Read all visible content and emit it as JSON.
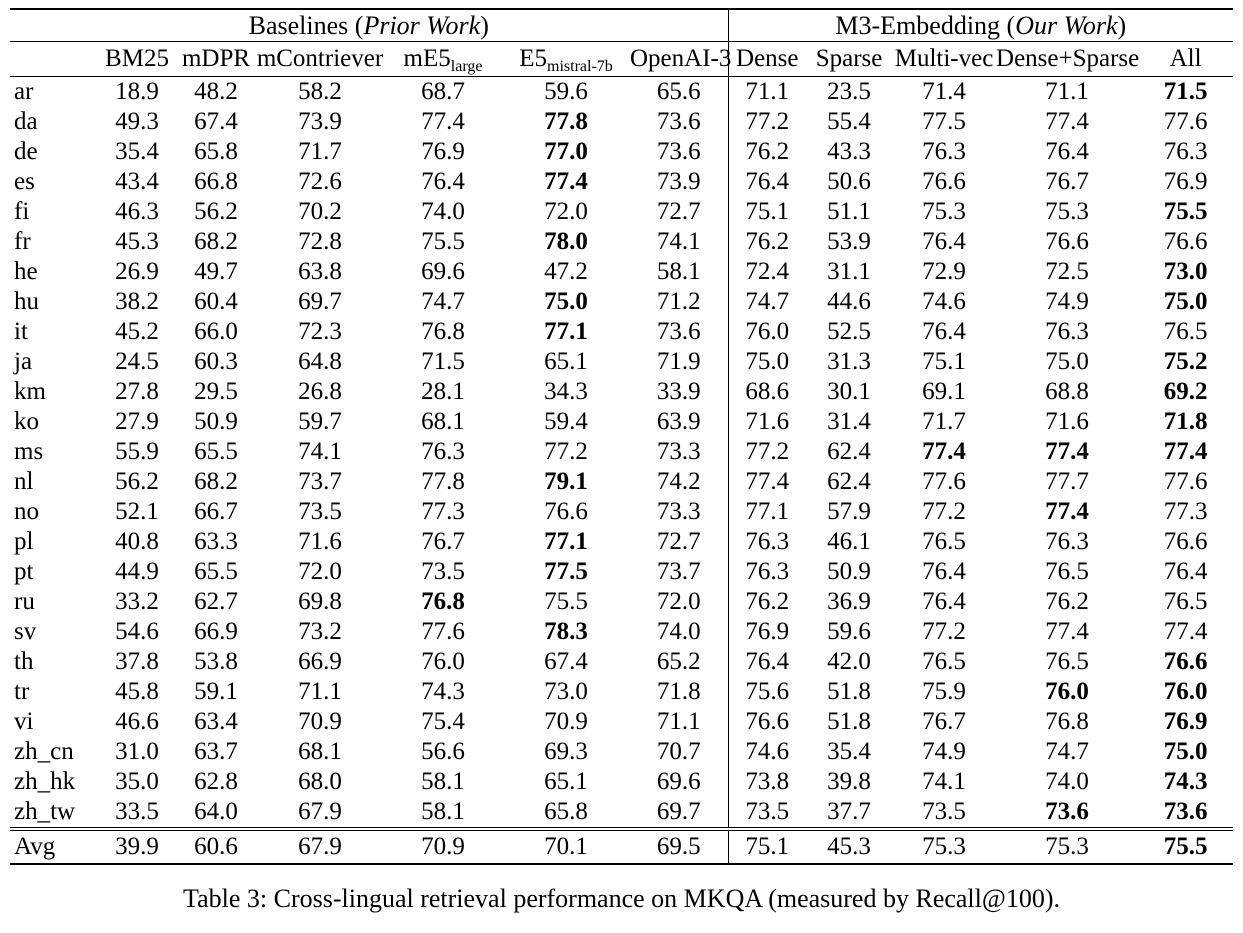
{
  "caption": "Table 3: Cross-lingual retrieval performance on MKQA (measured by Recall@100).",
  "colors": {
    "background": "#ffffff",
    "text": "#000000",
    "rule": "#000000"
  },
  "table": {
    "groups": [
      {
        "prefix": "Baselines (",
        "italic": "Prior Work",
        "suffix": ")"
      },
      {
        "prefix": "M3-Embedding (",
        "italic": "Our Work",
        "suffix": ")"
      }
    ],
    "row_label_header": "",
    "baseline_columns": [
      {
        "label": "BM25",
        "sub": ""
      },
      {
        "label": "mDPR",
        "sub": ""
      },
      {
        "label": "mContriever",
        "sub": ""
      },
      {
        "label": "mE5",
        "sub": "large"
      },
      {
        "label": "E5",
        "sub": "mistral-7b"
      },
      {
        "label": "OpenAI-3",
        "sub": ""
      }
    ],
    "m3_columns": [
      {
        "label": "Dense",
        "sub": ""
      },
      {
        "label": "Sparse",
        "sub": ""
      },
      {
        "label": "Multi-vec",
        "sub": ""
      },
      {
        "label": "Dense+Sparse",
        "sub": ""
      },
      {
        "label": "All",
        "sub": ""
      }
    ],
    "rows": [
      {
        "lang": "ar",
        "cells": [
          "18.9",
          "48.2",
          "58.2",
          "68.7",
          "59.6",
          "65.6",
          "71.1",
          "23.5",
          "71.4",
          "71.1",
          "71.5"
        ],
        "bold": [
          10
        ],
        "is_avg": false
      },
      {
        "lang": "da",
        "cells": [
          "49.3",
          "67.4",
          "73.9",
          "77.4",
          "77.8",
          "73.6",
          "77.2",
          "55.4",
          "77.5",
          "77.4",
          "77.6"
        ],
        "bold": [
          4
        ],
        "is_avg": false
      },
      {
        "lang": "de",
        "cells": [
          "35.4",
          "65.8",
          "71.7",
          "76.9",
          "77.0",
          "73.6",
          "76.2",
          "43.3",
          "76.3",
          "76.4",
          "76.3"
        ],
        "bold": [
          4
        ],
        "is_avg": false
      },
      {
        "lang": "es",
        "cells": [
          "43.4",
          "66.8",
          "72.6",
          "76.4",
          "77.4",
          "73.9",
          "76.4",
          "50.6",
          "76.6",
          "76.7",
          "76.9"
        ],
        "bold": [
          4
        ],
        "is_avg": false
      },
      {
        "lang": "fi",
        "cells": [
          "46.3",
          "56.2",
          "70.2",
          "74.0",
          "72.0",
          "72.7",
          "75.1",
          "51.1",
          "75.3",
          "75.3",
          "75.5"
        ],
        "bold": [
          10
        ],
        "is_avg": false
      },
      {
        "lang": "fr",
        "cells": [
          "45.3",
          "68.2",
          "72.8",
          "75.5",
          "78.0",
          "74.1",
          "76.2",
          "53.9",
          "76.4",
          "76.6",
          "76.6"
        ],
        "bold": [
          4
        ],
        "is_avg": false
      },
      {
        "lang": "he",
        "cells": [
          "26.9",
          "49.7",
          "63.8",
          "69.6",
          "47.2",
          "58.1",
          "72.4",
          "31.1",
          "72.9",
          "72.5",
          "73.0"
        ],
        "bold": [
          10
        ],
        "is_avg": false
      },
      {
        "lang": "hu",
        "cells": [
          "38.2",
          "60.4",
          "69.7",
          "74.7",
          "75.0",
          "71.2",
          "74.7",
          "44.6",
          "74.6",
          "74.9",
          "75.0"
        ],
        "bold": [
          4,
          10
        ],
        "is_avg": false
      },
      {
        "lang": "it",
        "cells": [
          "45.2",
          "66.0",
          "72.3",
          "76.8",
          "77.1",
          "73.6",
          "76.0",
          "52.5",
          "76.4",
          "76.3",
          "76.5"
        ],
        "bold": [
          4
        ],
        "is_avg": false
      },
      {
        "lang": "ja",
        "cells": [
          "24.5",
          "60.3",
          "64.8",
          "71.5",
          "65.1",
          "71.9",
          "75.0",
          "31.3",
          "75.1",
          "75.0",
          "75.2"
        ],
        "bold": [
          10
        ],
        "is_avg": false
      },
      {
        "lang": "km",
        "cells": [
          "27.8",
          "29.5",
          "26.8",
          "28.1",
          "34.3",
          "33.9",
          "68.6",
          "30.1",
          "69.1",
          "68.8",
          "69.2"
        ],
        "bold": [
          10
        ],
        "is_avg": false
      },
      {
        "lang": "ko",
        "cells": [
          "27.9",
          "50.9",
          "59.7",
          "68.1",
          "59.4",
          "63.9",
          "71.6",
          "31.4",
          "71.7",
          "71.6",
          "71.8"
        ],
        "bold": [
          10
        ],
        "is_avg": false
      },
      {
        "lang": "ms",
        "cells": [
          "55.9",
          "65.5",
          "74.1",
          "76.3",
          "77.2",
          "73.3",
          "77.2",
          "62.4",
          "77.4",
          "77.4",
          "77.4"
        ],
        "bold": [
          8,
          9,
          10
        ],
        "is_avg": false
      },
      {
        "lang": "nl",
        "cells": [
          "56.2",
          "68.2",
          "73.7",
          "77.8",
          "79.1",
          "74.2",
          "77.4",
          "62.4",
          "77.6",
          "77.7",
          "77.6"
        ],
        "bold": [
          4
        ],
        "is_avg": false
      },
      {
        "lang": "no",
        "cells": [
          "52.1",
          "66.7",
          "73.5",
          "77.3",
          "76.6",
          "73.3",
          "77.1",
          "57.9",
          "77.2",
          "77.4",
          "77.3"
        ],
        "bold": [
          9
        ],
        "is_avg": false
      },
      {
        "lang": "pl",
        "cells": [
          "40.8",
          "63.3",
          "71.6",
          "76.7",
          "77.1",
          "72.7",
          "76.3",
          "46.1",
          "76.5",
          "76.3",
          "76.6"
        ],
        "bold": [
          4
        ],
        "is_avg": false
      },
      {
        "lang": "pt",
        "cells": [
          "44.9",
          "65.5",
          "72.0",
          "73.5",
          "77.5",
          "73.7",
          "76.3",
          "50.9",
          "76.4",
          "76.5",
          "76.4"
        ],
        "bold": [
          4
        ],
        "is_avg": false
      },
      {
        "lang": "ru",
        "cells": [
          "33.2",
          "62.7",
          "69.8",
          "76.8",
          "75.5",
          "72.0",
          "76.2",
          "36.9",
          "76.4",
          "76.2",
          "76.5"
        ],
        "bold": [
          3
        ],
        "is_avg": false
      },
      {
        "lang": "sv",
        "cells": [
          "54.6",
          "66.9",
          "73.2",
          "77.6",
          "78.3",
          "74.0",
          "76.9",
          "59.6",
          "77.2",
          "77.4",
          "77.4"
        ],
        "bold": [
          4
        ],
        "is_avg": false
      },
      {
        "lang": "th",
        "cells": [
          "37.8",
          "53.8",
          "66.9",
          "76.0",
          "67.4",
          "65.2",
          "76.4",
          "42.0",
          "76.5",
          "76.5",
          "76.6"
        ],
        "bold": [
          10
        ],
        "is_avg": false
      },
      {
        "lang": "tr",
        "cells": [
          "45.8",
          "59.1",
          "71.1",
          "74.3",
          "73.0",
          "71.8",
          "75.6",
          "51.8",
          "75.9",
          "76.0",
          "76.0"
        ],
        "bold": [
          9,
          10
        ],
        "is_avg": false
      },
      {
        "lang": "vi",
        "cells": [
          "46.6",
          "63.4",
          "70.9",
          "75.4",
          "70.9",
          "71.1",
          "76.6",
          "51.8",
          "76.7",
          "76.8",
          "76.9"
        ],
        "bold": [
          10
        ],
        "is_avg": false
      },
      {
        "lang": "zh_cn",
        "cells": [
          "31.0",
          "63.7",
          "68.1",
          "56.6",
          "69.3",
          "70.7",
          "74.6",
          "35.4",
          "74.9",
          "74.7",
          "75.0"
        ],
        "bold": [
          10
        ],
        "is_avg": false
      },
      {
        "lang": "zh_hk",
        "cells": [
          "35.0",
          "62.8",
          "68.0",
          "58.1",
          "65.1",
          "69.6",
          "73.8",
          "39.8",
          "74.1",
          "74.0",
          "74.3"
        ],
        "bold": [
          10
        ],
        "is_avg": false
      },
      {
        "lang": "zh_tw",
        "cells": [
          "33.5",
          "64.0",
          "67.9",
          "58.1",
          "65.8",
          "69.7",
          "73.5",
          "37.7",
          "73.5",
          "73.6",
          "73.6"
        ],
        "bold": [
          9,
          10
        ],
        "is_avg": false
      },
      {
        "lang": "Avg",
        "cells": [
          "39.9",
          "60.6",
          "67.9",
          "70.9",
          "70.1",
          "69.5",
          "75.1",
          "45.3",
          "75.3",
          "75.3",
          "75.5"
        ],
        "bold": [
          10
        ],
        "is_avg": true
      }
    ]
  }
}
